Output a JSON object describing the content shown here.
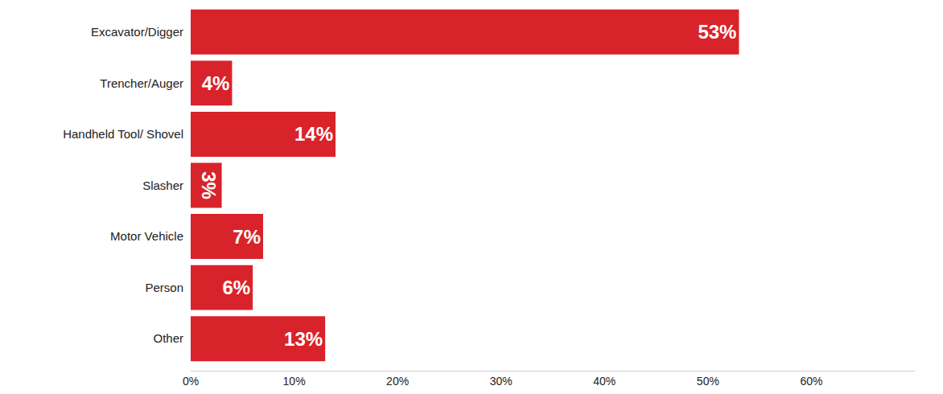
{
  "chart_data": {
    "type": "bar",
    "orientation": "horizontal",
    "categories": [
      "Excavator/Digger",
      "Trencher/Auger",
      "Handheld Tool/ Shovel",
      "Slasher",
      "Motor Vehicle",
      "Person",
      "Other"
    ],
    "values": [
      53,
      4,
      14,
      3,
      7,
      6,
      13
    ],
    "value_labels": [
      "53%",
      "4%",
      "14%",
      "3%",
      "7%",
      "6%",
      "13%"
    ],
    "data_labels": true,
    "color": "#d9232b",
    "xlim": [
      0,
      70
    ],
    "xticks": [
      {
        "value": 0,
        "label": "0%"
      },
      {
        "value": 10,
        "label": "10%"
      },
      {
        "value": 20,
        "label": "20%"
      },
      {
        "value": 30,
        "label": "30%"
      },
      {
        "value": 40,
        "label": "40%"
      },
      {
        "value": 50,
        "label": "50%"
      },
      {
        "value": 60,
        "label": "60%"
      }
    ],
    "grid": false
  }
}
